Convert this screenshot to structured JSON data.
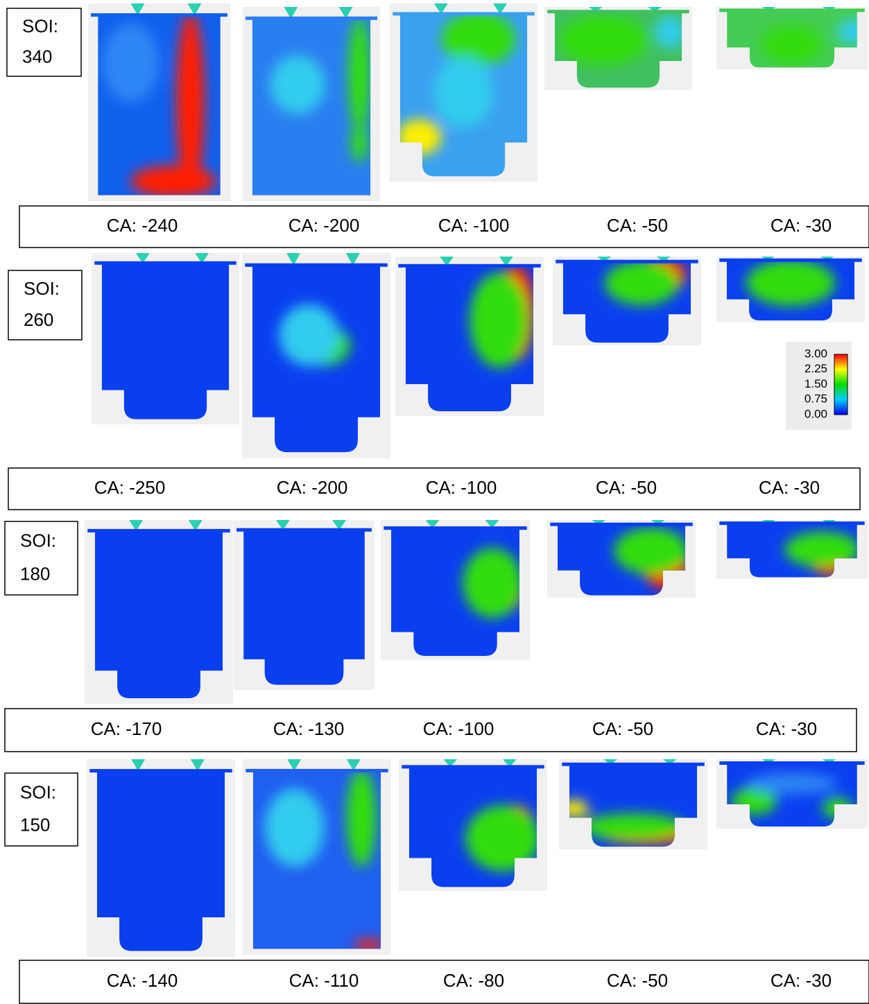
{
  "rows": [
    {
      "soi_label": "SOI:",
      "soi_value": "340",
      "ca_labels": [
        "CA: -240",
        "CA: -200",
        "CA: -100",
        "CA: -50",
        "CA: -30"
      ]
    },
    {
      "soi_label": "SOI:",
      "soi_value": "260",
      "ca_labels": [
        "CA: -250",
        "CA: -200",
        "CA: -100",
        "CA: -50",
        "CA: -30"
      ]
    },
    {
      "soi_label": "SOI:",
      "soi_value": "180",
      "ca_labels": [
        "CA: -170",
        "CA: -130",
        "CA: -100",
        "CA: -50",
        "CA: -30"
      ]
    },
    {
      "soi_label": "SOI:",
      "soi_value": "150",
      "ca_labels": [
        "CA: -140",
        "CA: -110",
        "CA: -80",
        "CA: -50",
        "CA: -30"
      ]
    }
  ],
  "colorbar": {
    "ticks": [
      "3.00",
      "2.25",
      "1.50",
      "0.75",
      "0.00"
    ]
  }
}
